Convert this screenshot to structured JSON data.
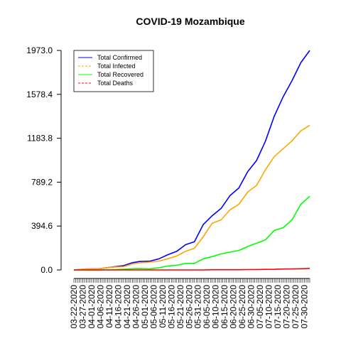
{
  "chart_data": {
    "type": "line",
    "title": "COVID-19 Mozambique",
    "xlabel": "",
    "ylabel": "",
    "ylim": [
      0,
      1973
    ],
    "y_ticks": [
      "0.0",
      "394.6",
      "789.2",
      "1183.8",
      "1578.4",
      "1973.0"
    ],
    "y_tick_values": [
      0,
      394.6,
      789.2,
      1183.8,
      1578.4,
      1973.0
    ],
    "x_tick_labels": [
      "03-22-2020",
      "03-27-2020",
      "04-01-2020",
      "04-06-2020",
      "04-11-2020",
      "04-16-2020",
      "04-21-2020",
      "04-26-2020",
      "05-01-2020",
      "05-06-2020",
      "05-11-2020",
      "05-16-2020",
      "05-21-2020",
      "05-26-2020",
      "05-31-2020",
      "06-05-2020",
      "06-10-2020",
      "06-15-2020",
      "06-20-2020",
      "06-25-2020",
      "06-30-2020",
      "07-05-2020",
      "07-10-2020",
      "07-15-2020",
      "07-20-2020",
      "07-25-2020",
      "07-30-2020"
    ],
    "x_days": [
      "03-22-2020",
      "03-29-2020",
      "04-05-2020",
      "04-12-2020",
      "04-19-2020",
      "04-24-2020",
      "04-28-2020",
      "05-04-2020",
      "05-09-2020",
      "05-14-2020",
      "05-19-2020",
      "05-24-2020",
      "05-29-2020",
      "06-03-2020",
      "06-08-2020",
      "06-13-2020",
      "06-18-2020",
      "06-23-2020",
      "06-28-2020",
      "07-03-2020",
      "07-08-2020",
      "07-13-2020",
      "07-18-2020",
      "07-23-2020",
      "07-28-2020",
      "08-02-2020"
    ],
    "series": [
      {
        "name": "Total Confirmed",
        "color": "#0000ff",
        "values": [
          0,
          8,
          10,
          25,
          39,
          65,
          76,
          80,
          100,
          137,
          168,
          227,
          254,
          409,
          488,
          553,
          668,
          737,
          883,
          983,
          1157,
          1383,
          1557,
          1701,
          1864,
          1973
        ]
      },
      {
        "name": "Total Infected",
        "color": "#ffa500",
        "values": [
          0,
          8,
          10,
          24,
          30,
          54,
          64,
          70,
          80,
          101,
          126,
          168,
          195,
          300,
          420,
          450,
          540,
          590,
          700,
          760,
          900,
          1020,
          1090,
          1160,
          1250,
          1300
        ]
      },
      {
        "name": "Total Recovered",
        "color": "#00ff00",
        "values": [
          0,
          0,
          0,
          1,
          7,
          11,
          12,
          10,
          20,
          36,
          42,
          59,
          59,
          100,
          120,
          144,
          160,
          175,
          210,
          240,
          270,
          355,
          380,
          450,
          590,
          662
        ]
      },
      {
        "name": "Total Deaths",
        "color": "#ff0000",
        "values": [
          0,
          0,
          0,
          0,
          0,
          0,
          0,
          0,
          0,
          0,
          0,
          0,
          0,
          0,
          2,
          2,
          2,
          2,
          3,
          4,
          5,
          6,
          8,
          9,
          11,
          14
        ]
      }
    ],
    "legend": {
      "position": "top-left",
      "entries": [
        "Total Confirmed",
        "Total Infected",
        "Total Recovered",
        "Total Deaths"
      ],
      "line_styles": [
        "solid",
        "dashed",
        "solid",
        "dashed"
      ]
    },
    "grid": false
  }
}
